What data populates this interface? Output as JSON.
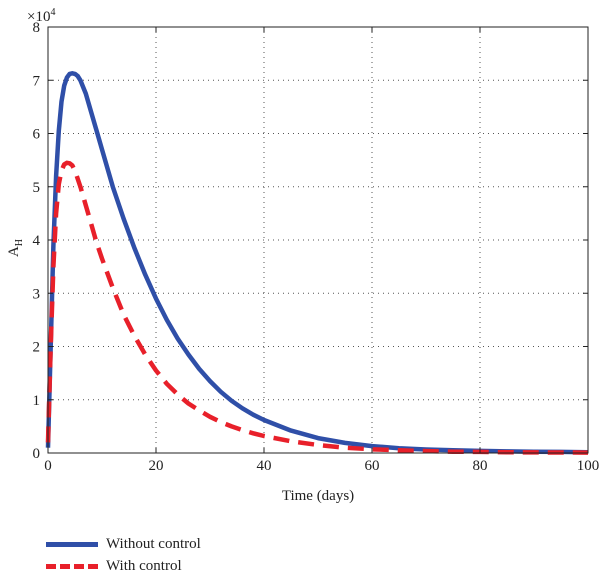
{
  "chart_data": {
    "type": "line",
    "title": "",
    "xlabel": "Time (days)",
    "ylabel": "A",
    "ylabel_subscript": "H",
    "y_multiplier_base": "×10",
    "y_multiplier_exp": "4",
    "xlim": [
      0,
      100
    ],
    "ylim": [
      0,
      8
    ],
    "xticks": [
      0,
      20,
      40,
      60,
      80,
      100
    ],
    "yticks": [
      0,
      1,
      2,
      3,
      4,
      5,
      6,
      7,
      8
    ],
    "grid": true,
    "legend_position": "bottom-left",
    "series": [
      {
        "name": "Without control",
        "color": "#2f4fa8",
        "style": "solid",
        "x": [
          0,
          0.5,
          1,
          1.5,
          2,
          2.5,
          3,
          3.5,
          4,
          4.5,
          5,
          5.5,
          6,
          7,
          8,
          9,
          10,
          12,
          14,
          16,
          18,
          20,
          22,
          24,
          26,
          28,
          30,
          32,
          34,
          36,
          38,
          40,
          45,
          50,
          55,
          60,
          65,
          70,
          75,
          80,
          85,
          90,
          95,
          100
        ],
        "values": [
          0.1,
          2.0,
          3.9,
          5.2,
          6.05,
          6.6,
          6.9,
          7.05,
          7.12,
          7.13,
          7.12,
          7.08,
          7.0,
          6.75,
          6.4,
          6.05,
          5.7,
          5.0,
          4.4,
          3.85,
          3.35,
          2.9,
          2.5,
          2.15,
          1.85,
          1.58,
          1.35,
          1.15,
          0.98,
          0.84,
          0.72,
          0.62,
          0.42,
          0.28,
          0.19,
          0.13,
          0.09,
          0.065,
          0.05,
          0.04,
          0.03,
          0.025,
          0.02,
          0.015
        ]
      },
      {
        "name": "With control",
        "color": "#e8202a",
        "style": "dashed",
        "x": [
          0,
          0.5,
          1,
          1.5,
          2,
          2.5,
          3,
          3.5,
          4,
          4.5,
          5,
          6,
          7,
          8,
          9,
          10,
          12,
          14,
          16,
          18,
          20,
          22,
          24,
          26,
          28,
          30,
          32,
          34,
          36,
          38,
          40,
          45,
          50,
          55,
          60,
          65,
          70,
          75,
          80,
          85,
          90,
          95,
          100
        ],
        "values": [
          0.2,
          2.0,
          3.5,
          4.5,
          5.05,
          5.3,
          5.42,
          5.45,
          5.44,
          5.4,
          5.3,
          5.0,
          4.65,
          4.3,
          3.95,
          3.65,
          3.1,
          2.6,
          2.2,
          1.85,
          1.55,
          1.3,
          1.1,
          0.93,
          0.8,
          0.68,
          0.58,
          0.5,
          0.43,
          0.37,
          0.32,
          0.22,
          0.15,
          0.1,
          0.07,
          0.05,
          0.035,
          0.025,
          0.02,
          0.015,
          0.012,
          0.01,
          0.008
        ]
      }
    ]
  }
}
